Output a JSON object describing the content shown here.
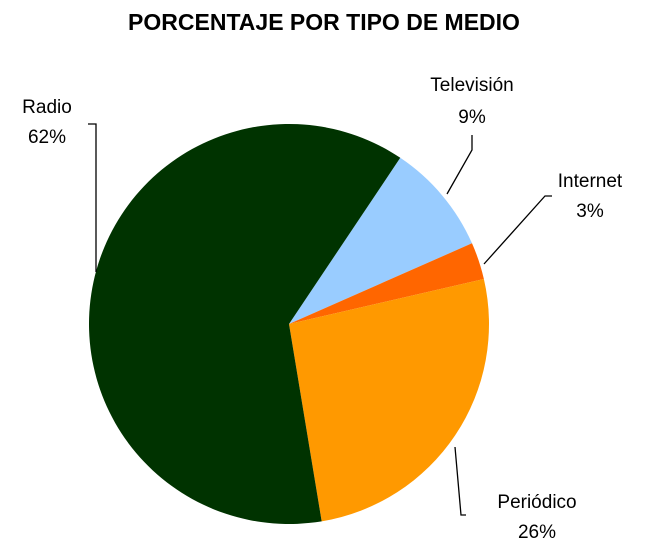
{
  "chart_data": {
    "type": "pie",
    "title": "PORCENTAJE POR TIPO DE MEDIO",
    "categories": [
      "Televisión",
      "Internet",
      "Periódico",
      "Radio"
    ],
    "values": [
      9,
      3,
      26,
      62
    ],
    "value_labels": [
      "9%",
      "3%",
      "26%",
      "62%"
    ],
    "colors": [
      "#99ccff",
      "#ff6600",
      "#ff9900",
      "#003300"
    ]
  }
}
